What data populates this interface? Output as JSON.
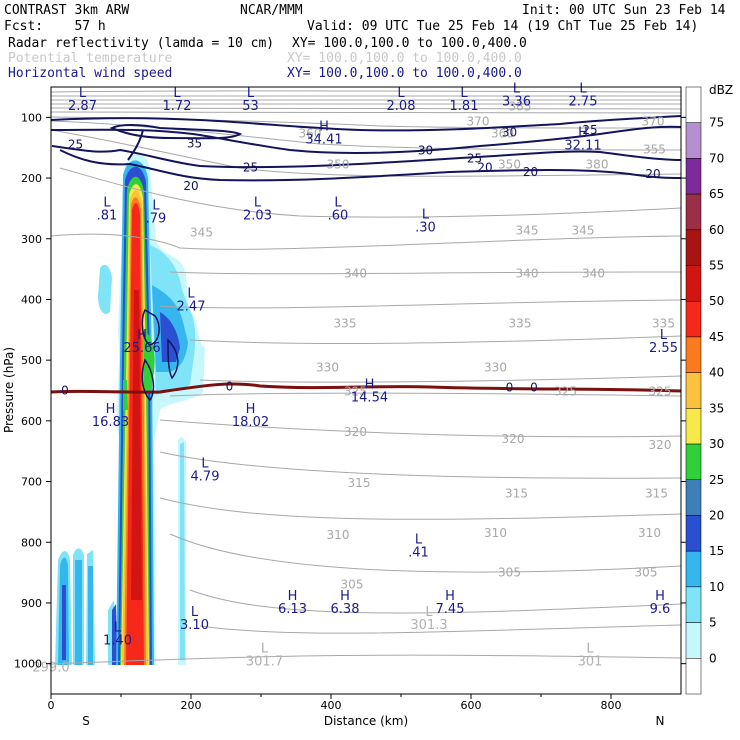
{
  "header": {
    "line1_left": "CONTRAST  3km ARW",
    "line1_mid": "NCAR/MMM",
    "line1_right": "Init: 00 UTC Sun 23 Feb 14",
    "line2_left": "Fcst:    57 h",
    "line2_right": "Valid: 09 UTC Tue 25 Feb 14 (19 ChT Tue 25 Feb 14)",
    "field1": "Radar reflectivity (lamda = 10 cm)",
    "field1_xy": "XY= 100.0,100.0 to 100.0,400.0",
    "field2": "Potential temperature",
    "field2_xy": "XY= 100.0,100.0 to 100.0,400.0",
    "field3": "Horizontal wind speed",
    "field3_xy": "XY= 100.0,100.0 to 100.0,400.0"
  },
  "chart_data": {
    "type": "cross-section",
    "xlabel": "Distance (km)",
    "ylabel": "Pressure (hPa)",
    "xlim": [
      0,
      900
    ],
    "ylim": [
      1050,
      50
    ],
    "x_ticks": [
      0,
      200,
      400,
      600,
      800
    ],
    "y_ticks": [
      100,
      200,
      300,
      400,
      500,
      600,
      700,
      800,
      900,
      1000
    ],
    "left_end_label": "S",
    "right_end_label": "N",
    "colorbar": {
      "unit": "dBZ",
      "levels": [
        {
          "label": "0",
          "color": "#ffffff"
        },
        {
          "label": "5",
          "color": "#c6f7fb"
        },
        {
          "label": "10",
          "color": "#7fe4f7"
        },
        {
          "label": "15",
          "color": "#36b6ee"
        },
        {
          "label": "20",
          "color": "#2a4fd0"
        },
        {
          "label": "25",
          "color": "#3f7fb8"
        },
        {
          "label": "30",
          "color": "#2fd03a"
        },
        {
          "label": "35",
          "color": "#f8e84a"
        },
        {
          "label": "40",
          "color": "#fcc23e"
        },
        {
          "label": "45",
          "color": "#fb7a1e"
        },
        {
          "label": "50",
          "color": "#f6281b"
        },
        {
          "label": "55",
          "color": "#d21512"
        },
        {
          "label": "60",
          "color": "#a81412"
        },
        {
          "label": "65",
          "color": "#9c2f48"
        },
        {
          "label": "70",
          "color": "#7d2a9c"
        },
        {
          "label": "75",
          "color": "#b68fd0"
        }
      ],
      "top_color": "#ffffff"
    },
    "theta_contours": [
      {
        "label": "370",
        "x": 610,
        "p": 107
      },
      {
        "label": "370",
        "x": 860,
        "p": 107
      },
      {
        "label": "385",
        "x": 670,
        "p": 82
      },
      {
        "label": "360",
        "x": 370,
        "p": 127
      },
      {
        "label": "360",
        "x": 645,
        "p": 127
      },
      {
        "label": "355",
        "x": 862,
        "p": 153
      },
      {
        "label": "380",
        "x": 780,
        "p": 178
      },
      {
        "label": "350",
        "x": 410,
        "p": 178
      },
      {
        "label": "350",
        "x": 655,
        "p": 178
      },
      {
        "label": "345",
        "x": 215,
        "p": 290
      },
      {
        "label": "345",
        "x": 680,
        "p": 286
      },
      {
        "label": "345",
        "x": 760,
        "p": 286
      },
      {
        "label": "340",
        "x": 435,
        "p": 357
      },
      {
        "label": "340",
        "x": 680,
        "p": 357
      },
      {
        "label": "340",
        "x": 775,
        "p": 357
      },
      {
        "label": "335",
        "x": 420,
        "p": 440
      },
      {
        "label": "335",
        "x": 670,
        "p": 440
      },
      {
        "label": "335",
        "x": 875,
        "p": 440
      },
      {
        "label": "330",
        "x": 395,
        "p": 512
      },
      {
        "label": "330",
        "x": 635,
        "p": 512
      },
      {
        "label": "325",
        "x": 435,
        "p": 552
      },
      {
        "label": "325",
        "x": 735,
        "p": 552
      },
      {
        "label": "325",
        "x": 870,
        "p": 552
      },
      {
        "label": "320",
        "x": 435,
        "p": 618
      },
      {
        "label": "320",
        "x": 660,
        "p": 630
      },
      {
        "label": "320",
        "x": 870,
        "p": 640
      },
      {
        "label": "315",
        "x": 440,
        "p": 702
      },
      {
        "label": "315",
        "x": 665,
        "p": 720
      },
      {
        "label": "315",
        "x": 865,
        "p": 720
      },
      {
        "label": "310",
        "x": 410,
        "p": 788
      },
      {
        "label": "310",
        "x": 635,
        "p": 785
      },
      {
        "label": "310",
        "x": 855,
        "p": 785
      },
      {
        "label": "305",
        "x": 430,
        "p": 870
      },
      {
        "label": "305",
        "x": 655,
        "p": 850
      },
      {
        "label": "305",
        "x": 850,
        "p": 850
      }
    ],
    "wind_contours": [
      {
        "label": "25",
        "x": 35,
        "p": 145
      },
      {
        "label": "35",
        "x": 205,
        "p": 143
      },
      {
        "label": "25",
        "x": 285,
        "p": 183
      },
      {
        "label": "20",
        "x": 200,
        "p": 213
      },
      {
        "label": "30",
        "x": 535,
        "p": 155
      },
      {
        "label": "25",
        "x": 605,
        "p": 168
      },
      {
        "label": "20",
        "x": 620,
        "p": 183
      },
      {
        "label": "20",
        "x": 685,
        "p": 190
      },
      {
        "label": "30",
        "x": 655,
        "p": 125
      },
      {
        "label": "25",
        "x": 770,
        "p": 121
      },
      {
        "label": "20",
        "x": 860,
        "p": 193
      },
      {
        "label": "0",
        "x": 20,
        "p": 550
      },
      {
        "label": "0",
        "x": 255,
        "p": 543
      },
      {
        "label": "0",
        "x": 655,
        "p": 545
      },
      {
        "label": "0",
        "x": 690,
        "p": 545
      }
    ],
    "extrema": [
      {
        "kind": "L",
        "value": "2.87",
        "x": 45,
        "p": 80
      },
      {
        "kind": "L",
        "value": "1.72",
        "x": 180,
        "p": 80
      },
      {
        "kind": "L",
        "value": "53",
        "x": 285,
        "p": 80
      },
      {
        "kind": "L",
        "value": "2.08",
        "x": 500,
        "p": 80
      },
      {
        "kind": "L",
        "value": "1.81",
        "x": 590,
        "p": 80
      },
      {
        "kind": "L",
        "value": "3.36",
        "x": 665,
        "p": 72
      },
      {
        "kind": "L",
        "value": "2.75",
        "x": 760,
        "p": 72
      },
      {
        "kind": "H",
        "value": "34.41",
        "x": 390,
        "p": 135
      },
      {
        "kind": "H",
        "value": "32.11",
        "x": 760,
        "p": 145
      },
      {
        "kind": "L",
        "value": ".81",
        "x": 80,
        "p": 260
      },
      {
        "kind": "L",
        "value": ".79",
        "x": 150,
        "p": 265
      },
      {
        "kind": "L",
        "value": "2.03",
        "x": 295,
        "p": 260
      },
      {
        "kind": "L",
        "value": ".60",
        "x": 410,
        "p": 260
      },
      {
        "kind": "L",
        "value": ".30",
        "x": 535,
        "p": 280
      },
      {
        "kind": "L",
        "value": "2.47",
        "x": 200,
        "p": 410
      },
      {
        "kind": "H",
        "value": "25.66",
        "x": 130,
        "p": 478
      },
      {
        "kind": "L",
        "value": "2.55",
        "x": 875,
        "p": 478
      },
      {
        "kind": "H",
        "value": "14.54",
        "x": 455,
        "p": 560
      },
      {
        "kind": "H",
        "value": "16.83",
        "x": 85,
        "p": 600
      },
      {
        "kind": "H",
        "value": "18.02",
        "x": 285,
        "p": 600
      },
      {
        "kind": "L",
        "value": "4.79",
        "x": 220,
        "p": 690
      },
      {
        "kind": "L",
        "value": ".41",
        "x": 525,
        "p": 815
      },
      {
        "kind": "H",
        "value": "6.13",
        "x": 345,
        "p": 908
      },
      {
        "kind": "H",
        "value": "6.38",
        "x": 420,
        "p": 908
      },
      {
        "kind": "H",
        "value": "7.45",
        "x": 570,
        "p": 908
      },
      {
        "kind": "H",
        "value": "9.6",
        "x": 870,
        "p": 908
      },
      {
        "kind": "L",
        "value": "1.40",
        "x": 95,
        "p": 960
      },
      {
        "kind": "L",
        "value": "3.10",
        "x": 205,
        "p": 935
      },
      {
        "kind": "L",
        "value": "301.3",
        "x": 540,
        "p": 935,
        "grey": true
      },
      {
        "kind": "L",
        "value": "301.7",
        "x": 305,
        "p": 995,
        "grey": true
      },
      {
        "kind": "L",
        "value": "301",
        "x": 770,
        "p": 995,
        "grey": true
      },
      {
        "kind": "",
        "value": "299.0",
        "x": 0,
        "p": 1005,
        "grey": true
      }
    ]
  }
}
